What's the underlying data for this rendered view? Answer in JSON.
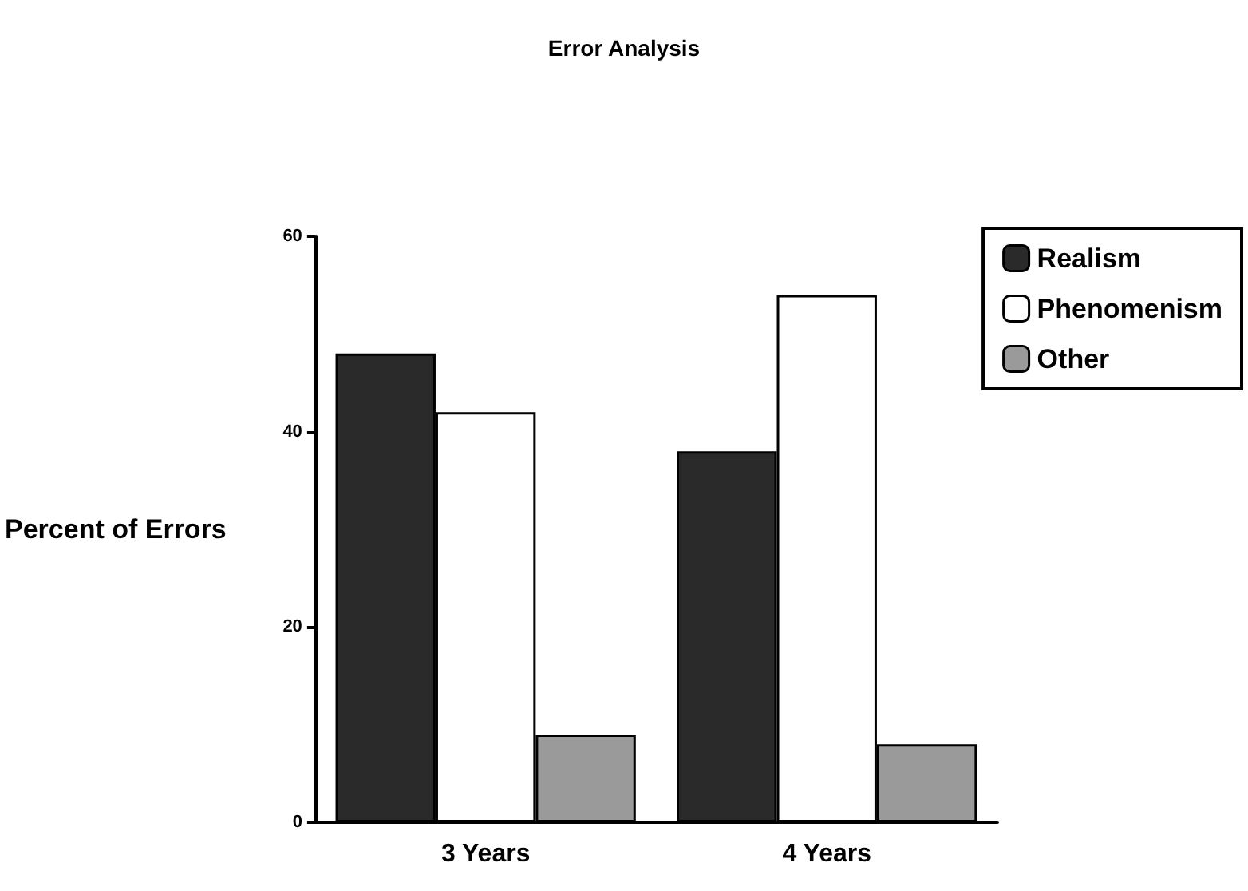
{
  "chart_data": {
    "type": "bar",
    "title": "Error Analysis",
    "ylabel": "Percent of Errors",
    "categories": [
      "3 Years",
      "4 Years"
    ],
    "series": [
      {
        "name": "Realism",
        "color": "#2a2a2a",
        "values": [
          48,
          38
        ]
      },
      {
        "name": "Phenomenism",
        "color": "#ffffff",
        "values": [
          42,
          54
        ]
      },
      {
        "name": "Other",
        "color": "#9a9a9a",
        "values": [
          9,
          8
        ]
      }
    ],
    "ylim": [
      0,
      60
    ],
    "yticks": [
      0,
      20,
      40,
      60
    ],
    "grid": false,
    "legend": "top right"
  }
}
